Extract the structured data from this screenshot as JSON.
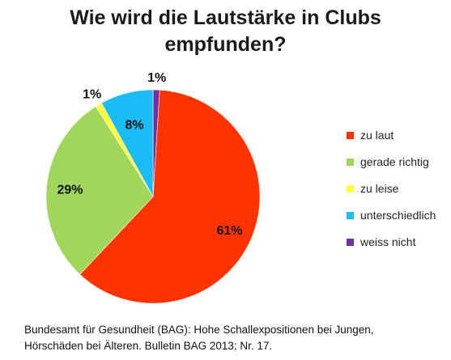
{
  "title_lines": [
    "Wie wird die Lautstärke in Clubs",
    "empfunden?"
  ],
  "chart_data": {
    "type": "pie",
    "title": "Wie wird die Lautstärke in Clubs empfunden?",
    "categories": [
      "zu laut",
      "gerade richtig",
      "zu leise",
      "unterschiedlich",
      "weiss nicht"
    ],
    "values": [
      61,
      29,
      1,
      8,
      1
    ],
    "labels": [
      "61%",
      "29%",
      "1%",
      "8%",
      "1%"
    ],
    "colors": [
      "#ff3300",
      "#a0d65a",
      "#ffff33",
      "#1abcf5",
      "#7030a0"
    ],
    "legend_position": "right"
  },
  "source_lines": [
    "Bundesamt für Gesundheit (BAG): Hohe Schallexpositionen bei Jungen,",
    "Hörschäden bei Älteren. Bulletin BAG 2013; Nr. 17."
  ]
}
